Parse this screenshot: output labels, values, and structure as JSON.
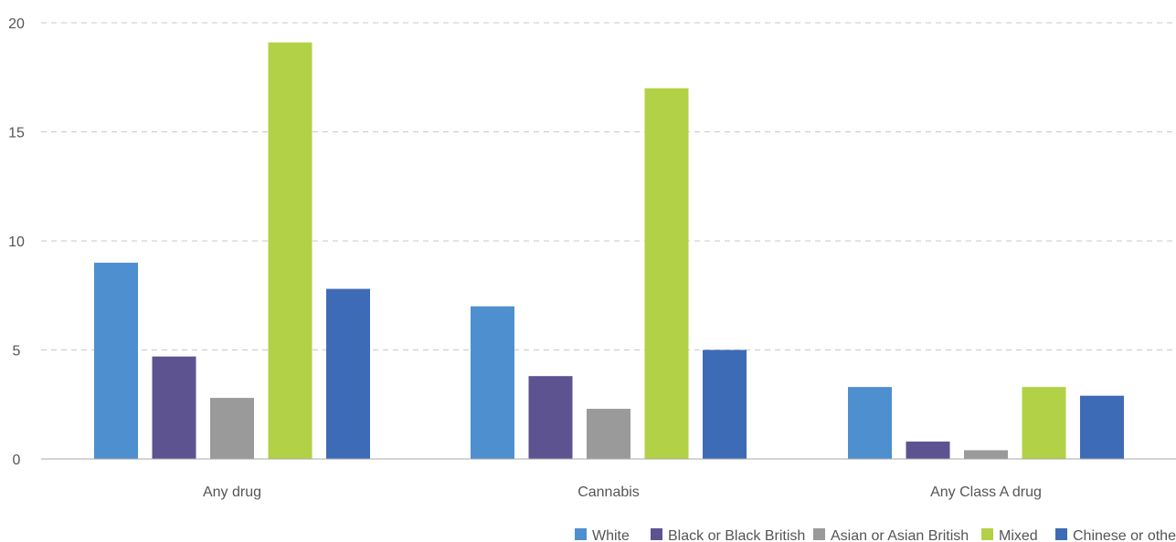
{
  "chart_data": {
    "type": "bar",
    "categories": [
      "Any drug",
      "Cannabis",
      "Any Class A drug"
    ],
    "series": [
      {
        "name": "White",
        "color": "#4e8fcf",
        "values": [
          9.0,
          7.0,
          3.3
        ]
      },
      {
        "name": "Black or Black British",
        "color": "#5e5391",
        "values": [
          4.7,
          3.8,
          0.8
        ]
      },
      {
        "name": "Asian or Asian British",
        "color": "#9a9a9a",
        "values": [
          2.8,
          2.3,
          0.4
        ]
      },
      {
        "name": "Mixed",
        "color": "#b2d146",
        "values": [
          19.1,
          17.0,
          3.3
        ]
      },
      {
        "name": "Chinese or other",
        "color": "#3e6bb5",
        "values": [
          7.8,
          5.0,
          2.9
        ]
      }
    ],
    "ylim": [
      0,
      20
    ],
    "yticks": [
      0,
      5,
      10,
      15,
      20
    ],
    "grid": true,
    "legend": "bottom-right"
  }
}
